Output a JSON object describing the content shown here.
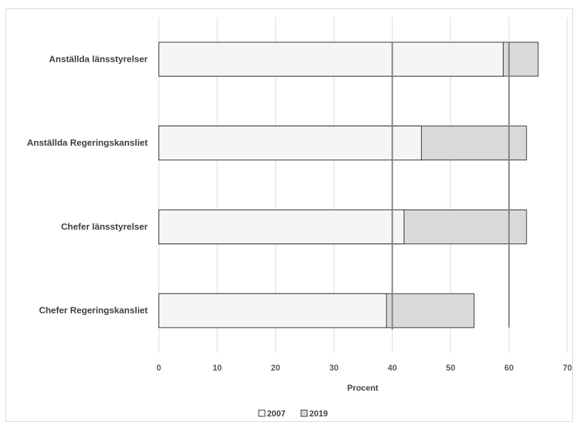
{
  "chart_data": {
    "type": "bar",
    "orientation": "horizontal",
    "categories": [
      "Anställda länsstyrelser",
      "Anställda Regeringskansliet",
      "Chefer länsstyrelser",
      "Chefer Regeringskansliet"
    ],
    "series": [
      {
        "name": "2007",
        "values": [
          59,
          45,
          42,
          39
        ],
        "color": "#f5f5f5"
      },
      {
        "name": "2019",
        "values": [
          65,
          63,
          63,
          54
        ],
        "color": "#d9d9d9"
      }
    ],
    "overlap": "full",
    "xlabel": "Procent",
    "xlim": [
      0,
      70
    ],
    "xticks": [
      0,
      10,
      20,
      30,
      40,
      50,
      60,
      70
    ],
    "reference_lines": [
      40,
      60
    ],
    "grid": "vertical",
    "legend_position": "bottom"
  }
}
